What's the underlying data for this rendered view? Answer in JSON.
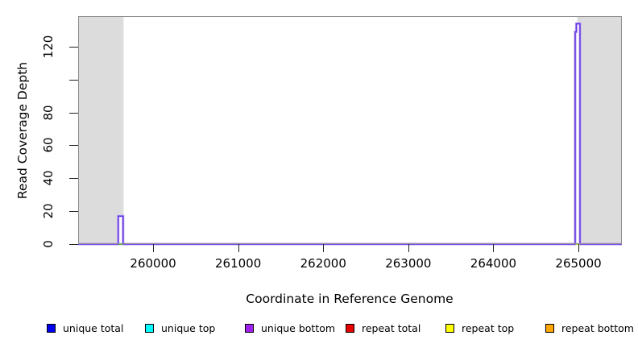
{
  "chart_data": {
    "type": "area",
    "title": "",
    "xlabel": "Coordinate in Reference Genome",
    "ylabel": "Read Coverage Depth",
    "xlim": [
      259119,
      265511
    ],
    "ylim": [
      0,
      138.6
    ],
    "grid": false,
    "x_ticks": [
      260000,
      261000,
      262000,
      263000,
      264000,
      265000
    ],
    "x_tick_labels": [
      "260000",
      "261000",
      "262000",
      "263000",
      "264000",
      "265000"
    ],
    "y_ticks": [
      0,
      20,
      40,
      60,
      80,
      100,
      120
    ],
    "y_tick_labels": [
      "0",
      "20",
      "40",
      "60",
      "80",
      "",
      "120"
    ],
    "shaded_regions": [
      {
        "x1": 259119,
        "x2": 259653
      },
      {
        "x1": 264987,
        "x2": 265511
      }
    ],
    "shaded_region_color": "#dcdcdc",
    "plot_border_color": "#8f8f8f",
    "coverage_line_core_color": "#6233e6",
    "coverage_line_halo_color": "#c4b2f2",
    "coverage_steps": [
      [
        259119,
        0
      ],
      [
        259590,
        0
      ],
      [
        259590,
        17
      ],
      [
        259647,
        17
      ],
      [
        259647,
        0
      ],
      [
        264962,
        0
      ],
      [
        264962,
        129
      ],
      [
        264975,
        129
      ],
      [
        264975,
        134
      ],
      [
        265019,
        134
      ],
      [
        265019,
        0
      ],
      [
        265511,
        0
      ]
    ],
    "baseline_overlap_segments": [
      {
        "x1": 259592,
        "x2": 259645,
        "value": 0,
        "color": "#55bb44"
      },
      {
        "x1": 264966,
        "x2": 265016,
        "value": 0,
        "color": "#b8d838"
      }
    ],
    "legend_position": "bottom",
    "legend": [
      {
        "label": "unique total",
        "color": "#0000ee"
      },
      {
        "label": "unique top",
        "color": "#00ffff"
      },
      {
        "label": "unique bottom",
        "color": "#a020f0"
      },
      {
        "label": "repeat total",
        "color": "#e60000"
      },
      {
        "label": "repeat top",
        "color": "#ffff00"
      },
      {
        "label": "repeat bottom",
        "color": "#ffa500"
      }
    ]
  }
}
